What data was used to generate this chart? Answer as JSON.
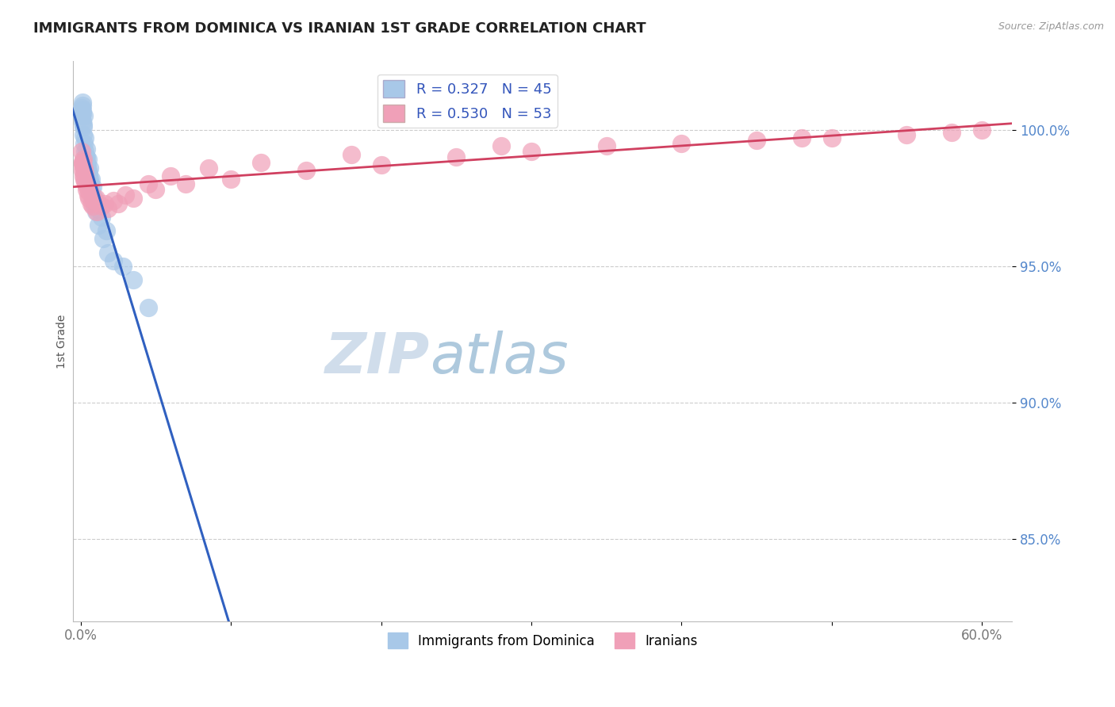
{
  "title": "IMMIGRANTS FROM DOMINICA VS IRANIAN 1ST GRADE CORRELATION CHART",
  "source_text": "Source: ZipAtlas.com",
  "ylabel": "1st Grade",
  "xlim": [
    -0.5,
    62.0
  ],
  "ylim": [
    82.0,
    102.5
  ],
  "ytick_vals": [
    85.0,
    90.0,
    95.0,
    100.0
  ],
  "ytick_labels": [
    "85.0%",
    "90.0%",
    "95.0%",
    "100.0%"
  ],
  "xtick_vals": [
    0.0,
    10.0,
    20.0,
    30.0,
    40.0,
    50.0,
    60.0
  ],
  "xtick_labels": [
    "0.0%",
    "",
    "",
    "",
    "",
    "",
    "60.0%"
  ],
  "legend_labels": [
    "Immigrants from Dominica",
    "Iranians"
  ],
  "blue_R": 0.327,
  "blue_N": 45,
  "pink_R": 0.53,
  "pink_N": 53,
  "blue_color": "#a8c8e8",
  "pink_color": "#f0a0b8",
  "blue_edge_color": "#7aaad0",
  "pink_edge_color": "#e080a0",
  "blue_line_color": "#3060c0",
  "pink_line_color": "#d04060",
  "watermark_zip": "ZIP",
  "watermark_atlas": "atlas",
  "blue_x": [
    0.05,
    0.08,
    0.1,
    0.12,
    0.15,
    0.15,
    0.18,
    0.2,
    0.22,
    0.25,
    0.28,
    0.3,
    0.32,
    0.35,
    0.38,
    0.4,
    0.42,
    0.45,
    0.5,
    0.55,
    0.6,
    0.65,
    0.7,
    0.8,
    0.9,
    1.0,
    1.2,
    1.5,
    1.8,
    2.2,
    2.8,
    3.5,
    4.5,
    0.1,
    0.2,
    0.3,
    0.4,
    0.5,
    0.6,
    0.7,
    0.8,
    0.9,
    1.1,
    1.4,
    1.7
  ],
  "blue_y": [
    100.8,
    100.5,
    101.0,
    100.9,
    100.7,
    100.3,
    100.1,
    99.8,
    100.5,
    99.5,
    99.2,
    98.8,
    99.0,
    98.5,
    98.8,
    99.0,
    98.3,
    98.7,
    98.5,
    98.4,
    98.2,
    98.0,
    97.8,
    97.5,
    97.2,
    97.0,
    96.5,
    96.0,
    95.5,
    95.2,
    95.0,
    94.5,
    93.5,
    100.6,
    100.2,
    99.7,
    99.3,
    98.9,
    98.6,
    98.2,
    97.9,
    97.5,
    97.1,
    96.8,
    96.3
  ],
  "pink_x": [
    0.05,
    0.1,
    0.12,
    0.15,
    0.18,
    0.2,
    0.22,
    0.25,
    0.28,
    0.3,
    0.35,
    0.4,
    0.45,
    0.5,
    0.55,
    0.6,
    0.7,
    0.8,
    0.9,
    1.1,
    1.4,
    1.8,
    2.5,
    3.5,
    5.0,
    7.0,
    10.0,
    15.0,
    20.0,
    25.0,
    30.0,
    35.0,
    40.0,
    45.0,
    50.0,
    55.0,
    58.0,
    60.0,
    0.15,
    0.25,
    0.35,
    0.6,
    1.0,
    1.6,
    2.2,
    3.0,
    4.5,
    6.0,
    8.5,
    12.0,
    18.0,
    28.0,
    48.0
  ],
  "pink_y": [
    99.2,
    98.8,
    98.5,
    98.7,
    98.3,
    98.9,
    98.2,
    98.6,
    98.1,
    98.4,
    98.0,
    97.8,
    97.9,
    97.6,
    97.5,
    97.7,
    97.3,
    97.2,
    97.4,
    97.0,
    97.2,
    97.1,
    97.3,
    97.5,
    97.8,
    98.0,
    98.2,
    98.5,
    98.7,
    99.0,
    99.2,
    99.4,
    99.5,
    99.6,
    99.7,
    99.8,
    99.9,
    100.0,
    98.8,
    98.5,
    98.2,
    97.8,
    97.5,
    97.3,
    97.4,
    97.6,
    98.0,
    98.3,
    98.6,
    98.8,
    99.1,
    99.4,
    99.7
  ]
}
